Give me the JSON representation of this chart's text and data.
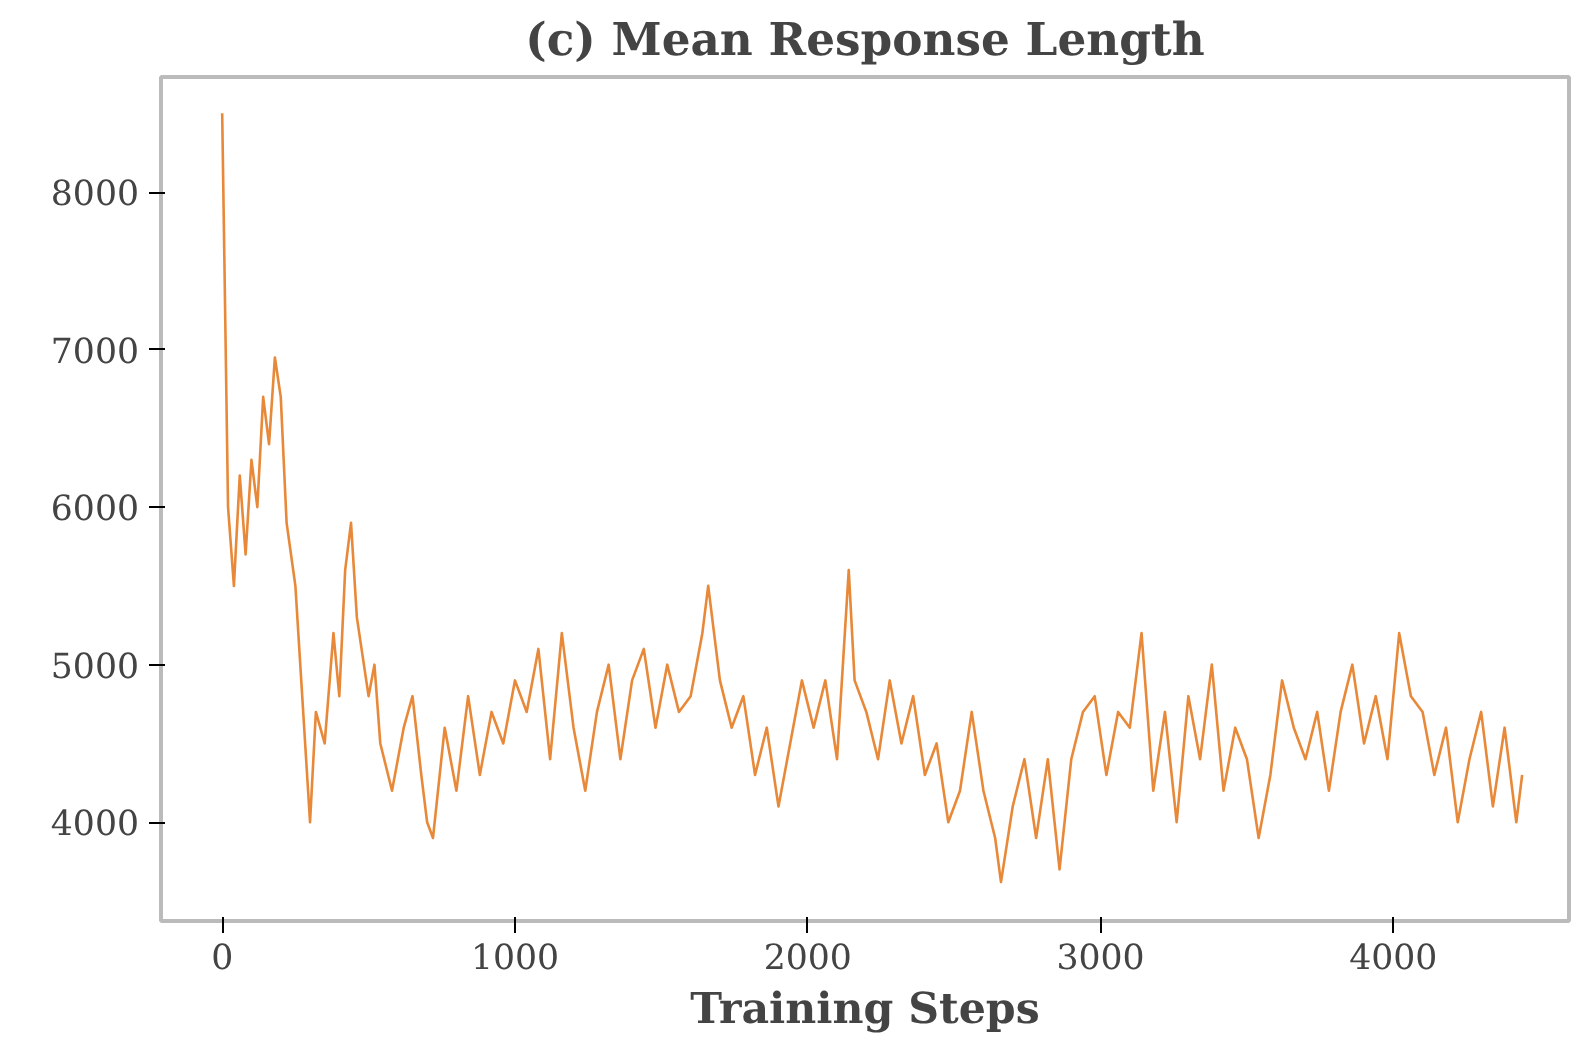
{
  "chart_data": {
    "type": "line",
    "title": "(c) Mean Response Length",
    "xlabel": "Training Steps",
    "xlim": [
      -209,
      4600
    ],
    "ylim": [
      3373,
      8730
    ],
    "xticks": [
      0,
      1000,
      2000,
      3000,
      4000
    ],
    "yticks": [
      4000,
      5000,
      6000,
      7000,
      8000
    ],
    "grid": false,
    "line_style": "solid",
    "series": [
      {
        "color": "#e8893a",
        "x": [
          0,
          20,
          40,
          60,
          80,
          100,
          120,
          140,
          160,
          180,
          200,
          220,
          250,
          270,
          300,
          320,
          350,
          380,
          400,
          420,
          440,
          460,
          500,
          520,
          540,
          580,
          620,
          650,
          680,
          700,
          720,
          760,
          800,
          840,
          880,
          920,
          960,
          1000,
          1040,
          1080,
          1120,
          1160,
          1200,
          1240,
          1280,
          1320,
          1360,
          1400,
          1440,
          1480,
          1520,
          1560,
          1600,
          1640,
          1660,
          1700,
          1740,
          1780,
          1820,
          1860,
          1900,
          1940,
          1980,
          2020,
          2060,
          2100,
          2140,
          2160,
          2200,
          2240,
          2280,
          2320,
          2360,
          2400,
          2440,
          2480,
          2520,
          2560,
          2600,
          2640,
          2660,
          2700,
          2740,
          2780,
          2820,
          2860,
          2900,
          2940,
          2980,
          3020,
          3060,
          3100,
          3140,
          3180,
          3220,
          3260,
          3300,
          3340,
          3380,
          3420,
          3460,
          3500,
          3540,
          3580,
          3620,
          3660,
          3700,
          3740,
          3780,
          3820,
          3860,
          3900,
          3940,
          3980,
          4020,
          4060,
          4100,
          4140,
          4180,
          4220,
          4260,
          4300,
          4340,
          4380,
          4420,
          4440
        ],
        "values": [
          8500,
          6000,
          5500,
          6200,
          5700,
          6300,
          6000,
          6700,
          6400,
          6950,
          6700,
          5900,
          5500,
          4900,
          4000,
          4700,
          4500,
          5200,
          4800,
          5600,
          5900,
          5300,
          4800,
          5000,
          4500,
          4200,
          4600,
          4800,
          4300,
          4000,
          3900,
          4600,
          4200,
          4800,
          4300,
          4700,
          4500,
          4900,
          4700,
          5100,
          4400,
          5200,
          4600,
          4200,
          4700,
          5000,
          4400,
          4900,
          5100,
          4600,
          5000,
          4700,
          4800,
          5200,
          5500,
          4900,
          4600,
          4800,
          4300,
          4600,
          4100,
          4500,
          4900,
          4600,
          4900,
          4400,
          5600,
          4900,
          4700,
          4400,
          4900,
          4500,
          4800,
          4300,
          4500,
          4000,
          4200,
          4700,
          4200,
          3900,
          3620,
          4100,
          4400,
          3900,
          4400,
          3700,
          4400,
          4700,
          4800,
          4300,
          4700,
          4600,
          5200,
          4200,
          4700,
          4000,
          4800,
          4400,
          5000,
          4200,
          4600,
          4400,
          3900,
          4300,
          4900,
          4600,
          4400,
          4700,
          4200,
          4700,
          5000,
          4500,
          4800,
          4400,
          5200,
          4800,
          4700,
          4300,
          4600,
          4000,
          4400,
          4700,
          4100,
          4600,
          4000,
          4300
        ]
      }
    ]
  }
}
